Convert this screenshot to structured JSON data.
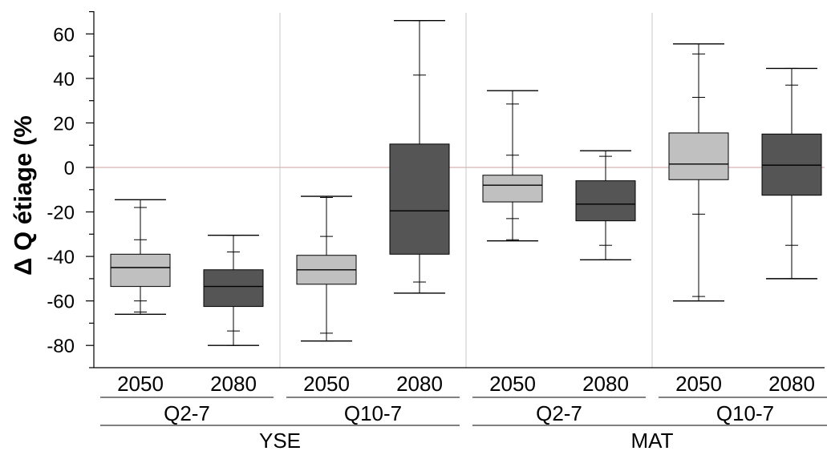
{
  "chart_data": {
    "type": "boxplot",
    "ylabel": "Δ Q étiage (%",
    "ylim": [
      -90,
      70
    ],
    "yticks": [
      -80,
      -60,
      -40,
      -20,
      0,
      20,
      40,
      60
    ],
    "reference_line": 0,
    "colors": {
      "2050": "#c0c0c0",
      "2080": "#555555"
    },
    "groups": [
      {
        "label": "YSE",
        "subgroups": [
          {
            "label": "Q2-7",
            "boxes": [
              {
                "period": "2050",
                "whisker_min": -66,
                "p5": -65,
                "p10": -60,
                "p25": -53.5,
                "median": -45,
                "p75": -39,
                "p90": -32.5,
                "p95": -18,
                "whisker_max": -14.5
              },
              {
                "period": "2080",
                "whisker_min": -80,
                "p5": -80,
                "p10": -73.5,
                "p25": -62.5,
                "median": -53.5,
                "p75": -46,
                "p90": -38,
                "p95": -30.5,
                "whisker_max": -30.5
              }
            ]
          },
          {
            "label": "Q10-7",
            "boxes": [
              {
                "period": "2050",
                "whisker_min": -78,
                "p5": -78,
                "p10": -74.5,
                "p25": -52.5,
                "median": -46,
                "p75": -39.5,
                "p90": -31,
                "p95": -13.5,
                "whisker_max": -13
              },
              {
                "period": "2080",
                "whisker_min": -56.5,
                "p5": -56.5,
                "p10": -51.5,
                "p25": -39,
                "median": -19.5,
                "p75": 10.5,
                "p90": 41.5,
                "p95": 66,
                "whisker_max": 66
              }
            ]
          }
        ]
      },
      {
        "label": "MAT",
        "subgroups": [
          {
            "label": "Q2-7",
            "boxes": [
              {
                "period": "2050",
                "whisker_min": -33,
                "p5": -32.5,
                "p10": -23,
                "p25": -15.5,
                "median": -8,
                "p75": -3.5,
                "p90": 5.5,
                "p95": 28.5,
                "whisker_max": 34.5
              },
              {
                "period": "2080",
                "whisker_min": -41.5,
                "p5": -41.5,
                "p10": -35,
                "p25": -24,
                "median": -16.5,
                "p75": -6,
                "p90": 5,
                "p95": 7.5,
                "whisker_max": 7.5
              }
            ]
          },
          {
            "label": "Q10-7",
            "boxes": [
              {
                "period": "2050",
                "whisker_min": -60,
                "p5": -58,
                "p10": -21,
                "p25": -5.5,
                "median": 1.5,
                "p75": 15.5,
                "p90": 31.5,
                "p95": 51,
                "whisker_max": 55.5
              },
              {
                "period": "2080",
                "whisker_min": -50,
                "p5": -50,
                "p10": -35,
                "p25": -12.5,
                "median": 1,
                "p75": 15,
                "p90": 37,
                "p95": 44.5,
                "whisker_max": 44.5
              }
            ]
          }
        ]
      }
    ]
  }
}
